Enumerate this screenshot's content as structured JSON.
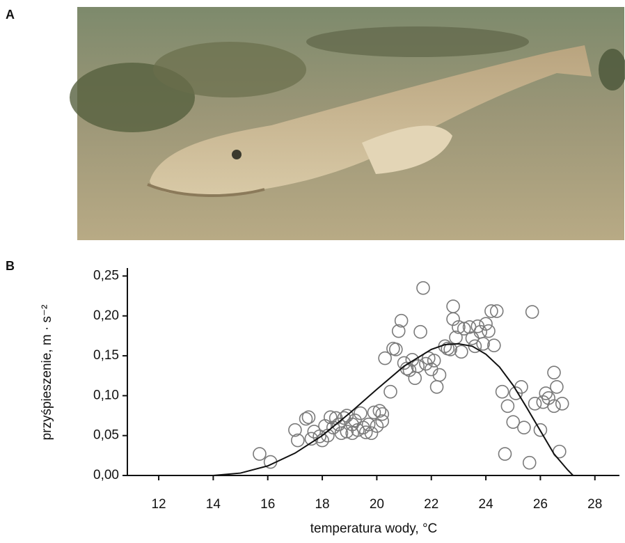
{
  "panel_labels": [
    "A",
    "B"
  ],
  "chart_data": {
    "type": "scatter",
    "x_label": "temperatura wody, °C",
    "y_label": "przyśpieszenie, m · s⁻²",
    "xlim": [
      10.85,
      28.9
    ],
    "ylim": [
      0,
      0.26
    ],
    "xticks": [
      12,
      14,
      16,
      18,
      20,
      22,
      24,
      26,
      28
    ],
    "yticks": [
      {
        "value": 0,
        "label": "0,00"
      },
      {
        "value": 0.05,
        "label": "0,05"
      },
      {
        "value": 0.1,
        "label": "0,10"
      },
      {
        "value": 0.15,
        "label": "0,15"
      },
      {
        "value": 0.2,
        "label": "0,20"
      },
      {
        "value": 0.25,
        "label": "0,25"
      }
    ],
    "series": [
      {
        "type": "scatter",
        "color": "#7a7a7a",
        "x": [
          15.7,
          16.1,
          17.0,
          17.1,
          17.4,
          17.5,
          17.6,
          17.7,
          17.9,
          18.0,
          18.1,
          18.2,
          18.3,
          18.4,
          18.5,
          18.6,
          18.7,
          18.8,
          18.9,
          18.9,
          19.1,
          19.1,
          19.2,
          19.3,
          19.4,
          19.5,
          19.6,
          19.7,
          19.8,
          19.9,
          20.0,
          20.1,
          20.2,
          20.2,
          20.3,
          20.5,
          20.6,
          20.7,
          20.8,
          20.9,
          21.0,
          21.1,
          21.2,
          21.3,
          21.4,
          21.5,
          21.6,
          21.7,
          21.8,
          21.9,
          22.0,
          22.1,
          22.2,
          22.3,
          22.5,
          22.6,
          22.7,
          22.8,
          22.8,
          22.9,
          23.0,
          23.1,
          23.2,
          23.4,
          23.5,
          23.6,
          23.7,
          23.8,
          23.9,
          24.0,
          24.1,
          24.2,
          24.3,
          24.4,
          24.6,
          24.7,
          24.8,
          25.0,
          25.1,
          25.3,
          25.4,
          25.6,
          25.7,
          25.8,
          26.0,
          26.1,
          26.2,
          26.3,
          26.5,
          26.5,
          26.6,
          26.8,
          26.7
        ],
        "values": [
          0.027,
          0.017,
          0.057,
          0.044,
          0.071,
          0.073,
          0.046,
          0.055,
          0.049,
          0.044,
          0.062,
          0.05,
          0.073,
          0.06,
          0.072,
          0.064,
          0.053,
          0.072,
          0.055,
          0.075,
          0.064,
          0.053,
          0.069,
          0.057,
          0.078,
          0.06,
          0.054,
          0.064,
          0.053,
          0.079,
          0.062,
          0.081,
          0.068,
          0.077,
          0.147,
          0.105,
          0.159,
          0.158,
          0.181,
          0.194,
          0.141,
          0.134,
          0.132,
          0.145,
          0.122,
          0.137,
          0.18,
          0.235,
          0.14,
          0.147,
          0.133,
          0.144,
          0.111,
          0.126,
          0.162,
          0.159,
          0.158,
          0.196,
          0.212,
          0.173,
          0.186,
          0.155,
          0.184,
          0.186,
          0.172,
          0.162,
          0.187,
          0.18,
          0.165,
          0.19,
          0.181,
          0.206,
          0.163,
          0.206,
          0.105,
          0.027,
          0.087,
          0.067,
          0.103,
          0.111,
          0.06,
          0.016,
          0.205,
          0.09,
          0.057,
          0.092,
          0.103,
          0.097,
          0.087,
          0.129,
          0.111,
          0.09,
          0.03
        ]
      },
      {
        "type": "line",
        "color": "#111111",
        "x": [
          14,
          15,
          16,
          17,
          18,
          19,
          20,
          21,
          22,
          22.5,
          23,
          23.5,
          24,
          24.5,
          25,
          25.5,
          26,
          26.5,
          27,
          27.2
        ],
        "values": [
          0,
          0.003,
          0.012,
          0.028,
          0.05,
          0.078,
          0.108,
          0.137,
          0.158,
          0.164,
          0.165,
          0.162,
          0.152,
          0.136,
          0.113,
          0.085,
          0.056,
          0.027,
          0.007,
          0
        ]
      }
    ]
  }
}
